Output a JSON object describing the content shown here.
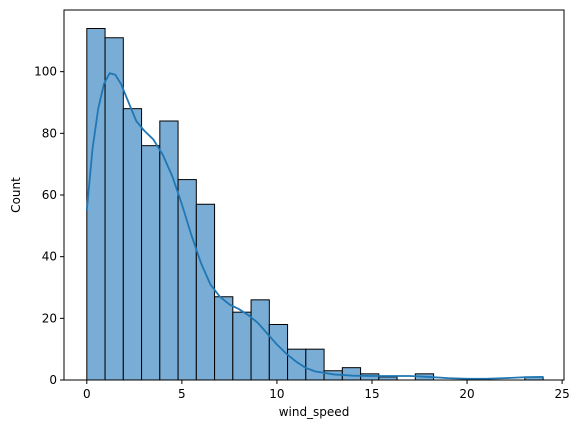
{
  "chart_data": {
    "type": "bar",
    "subtype": "histogram-with-kde",
    "title": "",
    "xlabel": "wind_speed",
    "ylabel": "Count",
    "xlim": [
      -1.2,
      25.1
    ],
    "ylim": [
      0,
      120
    ],
    "xticks": [
      0,
      5,
      10,
      15,
      20,
      25
    ],
    "yticks": [
      0,
      20,
      40,
      60,
      80,
      100
    ],
    "grid": false,
    "legend": "none",
    "bar_color": "#7aadd5",
    "edge_color": "#000000",
    "kde_color": "#1f77b4",
    "bin_width": 0.96,
    "bins": [
      {
        "x0": 0.0,
        "count": 114
      },
      {
        "x0": 0.96,
        "count": 111
      },
      {
        "x0": 1.92,
        "count": 88
      },
      {
        "x0": 2.88,
        "count": 76
      },
      {
        "x0": 3.84,
        "count": 84
      },
      {
        "x0": 4.8,
        "count": 65
      },
      {
        "x0": 5.76,
        "count": 57
      },
      {
        "x0": 6.72,
        "count": 27
      },
      {
        "x0": 7.68,
        "count": 22
      },
      {
        "x0": 8.64,
        "count": 26
      },
      {
        "x0": 9.6,
        "count": 18
      },
      {
        "x0": 10.56,
        "count": 10
      },
      {
        "x0": 11.52,
        "count": 10
      },
      {
        "x0": 12.48,
        "count": 3
      },
      {
        "x0": 13.44,
        "count": 4
      },
      {
        "x0": 14.4,
        "count": 2
      },
      {
        "x0": 15.36,
        "count": 1
      },
      {
        "x0": 16.32,
        "count": 0
      },
      {
        "x0": 17.28,
        "count": 2
      },
      {
        "x0": 18.24,
        "count": 0
      },
      {
        "x0": 19.2,
        "count": 0
      },
      {
        "x0": 20.16,
        "count": 0
      },
      {
        "x0": 21.12,
        "count": 0
      },
      {
        "x0": 22.08,
        "count": 0
      },
      {
        "x0": 23.04,
        "count": 1
      }
    ],
    "kde": {
      "x": [
        0,
        0.3,
        0.6,
        0.9,
        1.2,
        1.5,
        1.8,
        2.2,
        2.6,
        3.0,
        3.5,
        4.0,
        4.5,
        5.0,
        5.5,
        6.0,
        6.5,
        7.0,
        7.5,
        8.0,
        8.5,
        9.0,
        9.5,
        10.0,
        10.5,
        11.0,
        11.5,
        12.0,
        13.0,
        14.0,
        15.0,
        16.0,
        17.0,
        18.0,
        19.0,
        20.0,
        21.0,
        22.0,
        23.0,
        24.0
      ],
      "y": [
        55,
        75,
        88,
        96,
        99.5,
        99,
        96,
        90,
        84,
        81,
        78,
        73,
        66,
        57,
        47,
        38,
        31,
        27,
        24.5,
        23,
        21,
        18.5,
        15,
        11.5,
        8.5,
        6,
        4,
        2.8,
        1.8,
        1.4,
        1.3,
        1.3,
        1.3,
        1.0,
        0.6,
        0.4,
        0.4,
        0.6,
        0.9,
        1.0
      ]
    }
  }
}
